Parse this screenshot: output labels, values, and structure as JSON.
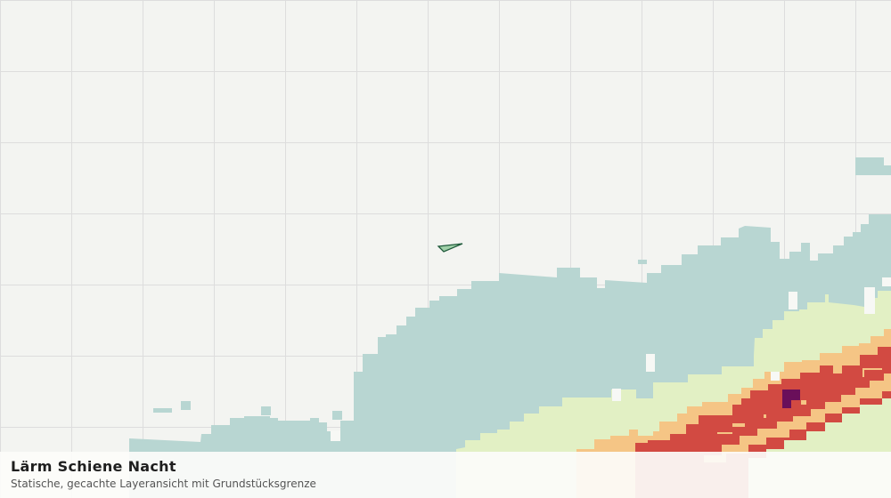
{
  "map": {
    "layer_colors": {
      "background": "#f3f4f1",
      "grid": "#dddddd",
      "noise_zone_1": "#b8d6d2",
      "noise_zone_2": "#e2f0c4",
      "noise_zone_3": "#f5c585",
      "noise_zone_4": "#d24a42",
      "noise_zone_5": "#6a0f5a",
      "parcel_fill": "#9fd0a8",
      "parcel_outline": "#1f5a3b"
    },
    "marker_icon": "parcel-boundary-icon"
  },
  "legend": {
    "title": "Lärm Schiene Nacht",
    "subtitle": "Statische, gecachte Layeransicht mit Grundstücksgrenze"
  }
}
